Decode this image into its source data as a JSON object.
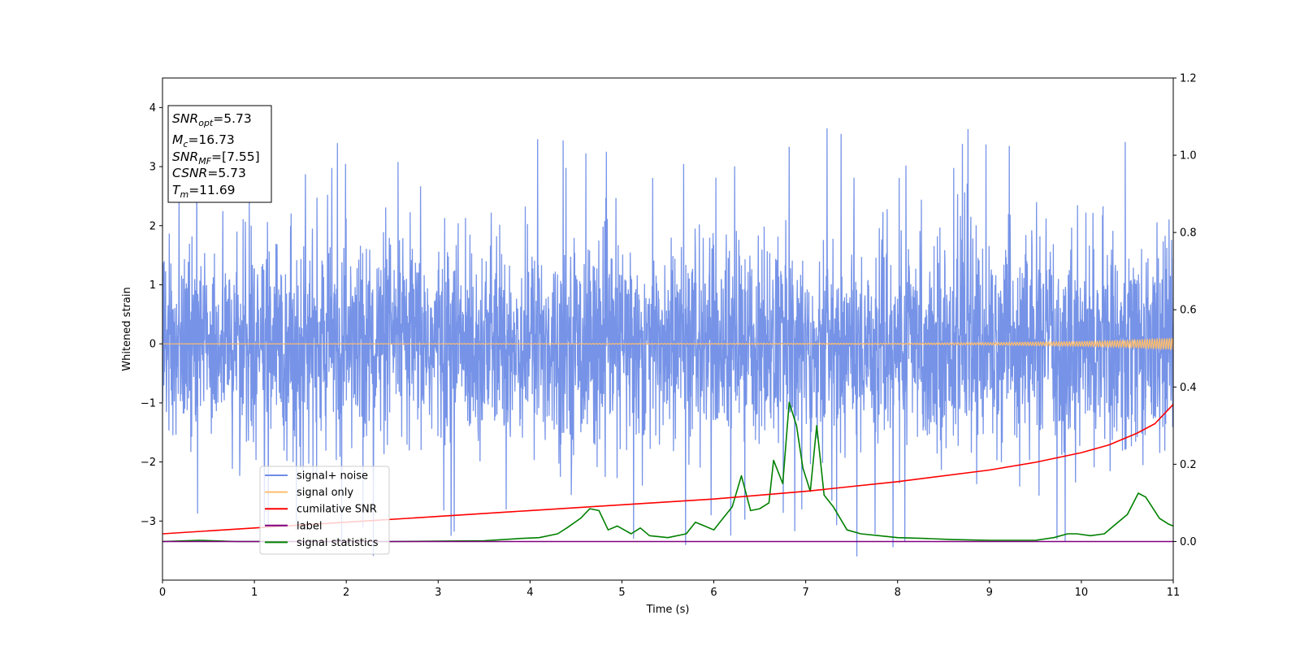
{
  "chart_data": {
    "type": "line",
    "title": "",
    "xlabel": "Time (s)",
    "ylabel": "Whitened strain",
    "xlim": [
      0,
      11
    ],
    "ylim": [
      -4,
      4.5
    ],
    "y2lim": [
      -0.1,
      1.2
    ],
    "xticks": [
      "0",
      "1",
      "2",
      "3",
      "4",
      "5",
      "6",
      "7",
      "8",
      "9",
      "10",
      "11"
    ],
    "yticks": [
      "−3",
      "−2",
      "−1",
      "0",
      "1",
      "2",
      "3",
      "4"
    ],
    "y2ticks": [
      "0.0",
      "0.2",
      "0.4",
      "0.6",
      "0.8",
      "1.0",
      "1.2"
    ],
    "grid": false,
    "legend_position": "lower-left",
    "series": [
      {
        "name": "signal+ noise",
        "color": "#6f8de6",
        "axis": "left",
        "description_values": "noise band, envelope approximately -1.8 to 1.8 with spikes to about 4.2 and -3.6",
        "x": [
          0,
          11
        ],
        "range": [
          -3.6,
          4.2
        ]
      },
      {
        "name": "signal only",
        "color": "#ffbe6e",
        "axis": "left",
        "x": [
          0,
          8,
          9,
          10,
          10.5,
          11
        ],
        "amplitude": [
          0.0,
          0.01,
          0.02,
          0.04,
          0.06,
          0.1
        ]
      },
      {
        "name": "cumilative SNR",
        "color": "#ff0000",
        "axis": "right",
        "x": [
          0,
          1,
          2,
          3,
          4,
          5,
          6,
          7,
          8,
          9,
          9.5,
          10,
          10.3,
          10.6,
          10.8,
          11
        ],
        "values": [
          0.02,
          0.035,
          0.05,
          0.065,
          0.08,
          0.095,
          0.11,
          0.13,
          0.155,
          0.185,
          0.205,
          0.23,
          0.25,
          0.28,
          0.305,
          0.355
        ]
      },
      {
        "name": "label",
        "color": "#800080",
        "axis": "right",
        "x": [
          0,
          11
        ],
        "values": [
          0.0,
          0.0
        ]
      },
      {
        "name": "signal statistics",
        "color": "#008000",
        "axis": "right",
        "x": [
          0,
          0.4,
          0.8,
          1.5,
          2.5,
          3.5,
          3.9,
          4.1,
          4.3,
          4.4,
          4.55,
          4.65,
          4.75,
          4.85,
          4.95,
          5.1,
          5.2,
          5.3,
          5.5,
          5.7,
          5.8,
          5.9,
          6.0,
          6.1,
          6.2,
          6.3,
          6.4,
          6.5,
          6.6,
          6.65,
          6.75,
          6.82,
          6.9,
          6.97,
          7.05,
          7.12,
          7.2,
          7.3,
          7.45,
          7.6,
          7.8,
          8.0,
          8.3,
          8.6,
          9.0,
          9.5,
          9.7,
          9.85,
          9.95,
          10.1,
          10.25,
          10.35,
          10.5,
          10.62,
          10.7,
          10.85,
          10.95,
          11.0
        ],
        "values": [
          0.0,
          0.003,
          0.0,
          0.0,
          0.0,
          0.002,
          0.008,
          0.01,
          0.02,
          0.035,
          0.06,
          0.085,
          0.08,
          0.03,
          0.04,
          0.02,
          0.035,
          0.015,
          0.01,
          0.02,
          0.05,
          0.04,
          0.03,
          0.06,
          0.09,
          0.17,
          0.08,
          0.085,
          0.1,
          0.21,
          0.15,
          0.36,
          0.3,
          0.19,
          0.13,
          0.3,
          0.12,
          0.09,
          0.03,
          0.02,
          0.015,
          0.01,
          0.008,
          0.005,
          0.003,
          0.003,
          0.01,
          0.02,
          0.02,
          0.015,
          0.02,
          0.04,
          0.07,
          0.125,
          0.115,
          0.06,
          0.045,
          0.04
        ]
      }
    ],
    "annotation_lines": [
      {
        "sym": "SNR",
        "sub": "opt",
        "val": "=5.73"
      },
      {
        "sym": "M",
        "sub": "c",
        "val": "=16.73"
      },
      {
        "sym": "SNR",
        "sub": "MF",
        "val": "=[7.55]"
      },
      {
        "sym": "CSNR",
        "sub": "",
        "val": "=5.73"
      },
      {
        "sym": "T",
        "sub": "m",
        "val": "=11.69"
      }
    ]
  }
}
